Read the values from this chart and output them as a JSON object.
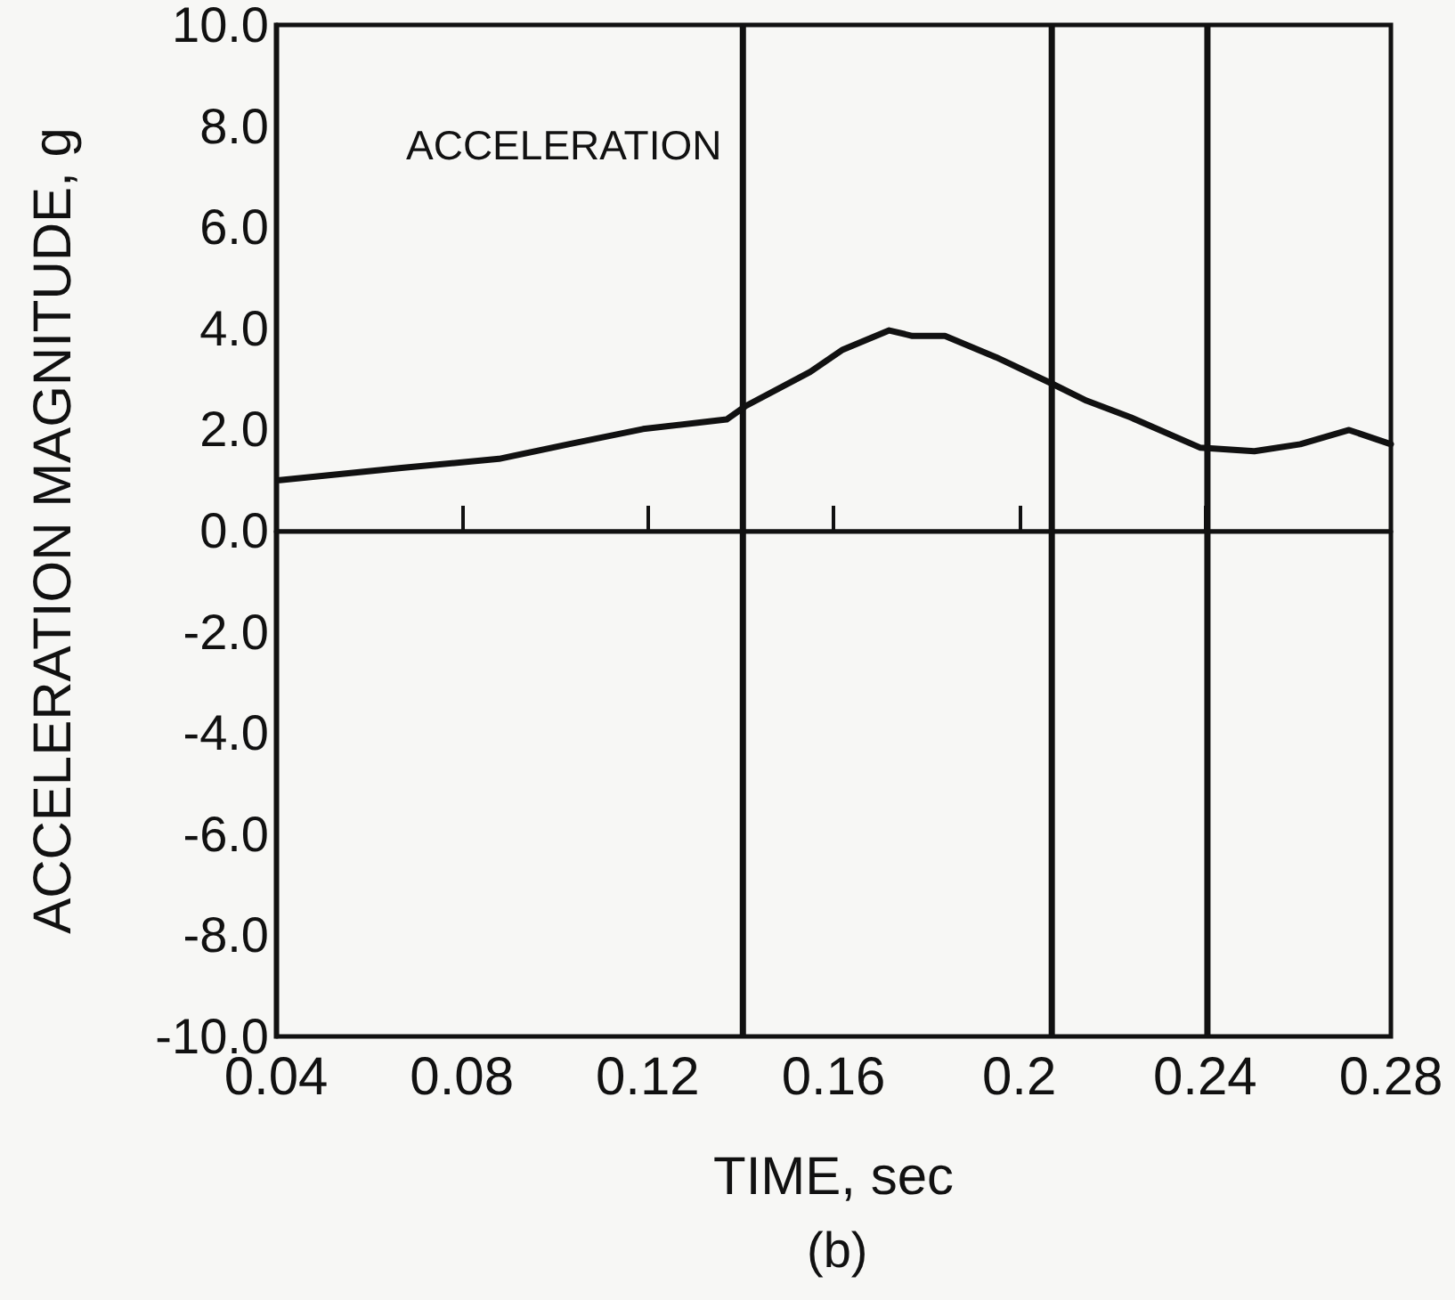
{
  "chart_data": {
    "type": "line",
    "xlabel": "TIME, sec",
    "ylabel": "ACCELERATION MAGNITUDE, g",
    "annotations": [
      "ACCELERATION",
      "(b)"
    ],
    "x": [
      0.0408,
      0.067,
      0.088,
      0.103,
      0.119,
      0.137,
      0.141,
      0.155,
      0.162,
      0.172,
      0.177,
      0.184,
      0.195,
      0.207,
      0.2145,
      0.224,
      0.239,
      0.2506,
      0.2605,
      0.271,
      0.28
    ],
    "series": [
      {
        "color": "#111111",
        "values": [
          1.0,
          1.24,
          1.42,
          1.71,
          2.01,
          2.2,
          2.46,
          3.14,
          3.58,
          3.96,
          3.85,
          3.85,
          3.43,
          2.91,
          2.57,
          2.24,
          1.64,
          1.57,
          1.71,
          1.99,
          1.71
        ]
      }
    ],
    "xlim": [
      0.04,
      0.28
    ],
    "xticks": [
      0.04,
      0.08,
      0.12,
      0.16,
      0.2,
      0.24,
      0.28
    ],
    "ylim": [
      -10,
      10
    ],
    "yticks": [
      {
        "value": -10,
        "label": "-10.0"
      },
      {
        "value": -8,
        "label": "-8.0"
      },
      {
        "value": -6,
        "label": "-6.0"
      },
      {
        "value": -4,
        "label": "-4.0"
      },
      {
        "value": -2,
        "label": "-2.0"
      },
      {
        "value": 0,
        "label": "0.0"
      },
      {
        "value": 2,
        "label": "2.0"
      },
      {
        "value": 4,
        "label": "4.0"
      },
      {
        "value": 6,
        "label": "6.0"
      },
      {
        "value": 8,
        "label": "8.0"
      },
      {
        "value": 10,
        "label": "10.0"
      }
    ],
    "ref_lines": [
      {
        "axis": "y",
        "value": 0
      },
      {
        "axis": "x",
        "value": 0.1405
      },
      {
        "axis": "x",
        "value": 0.207
      },
      {
        "axis": "x",
        "value": 0.2405
      }
    ],
    "grid": false,
    "marker": "none",
    "line_style": "solid"
  }
}
